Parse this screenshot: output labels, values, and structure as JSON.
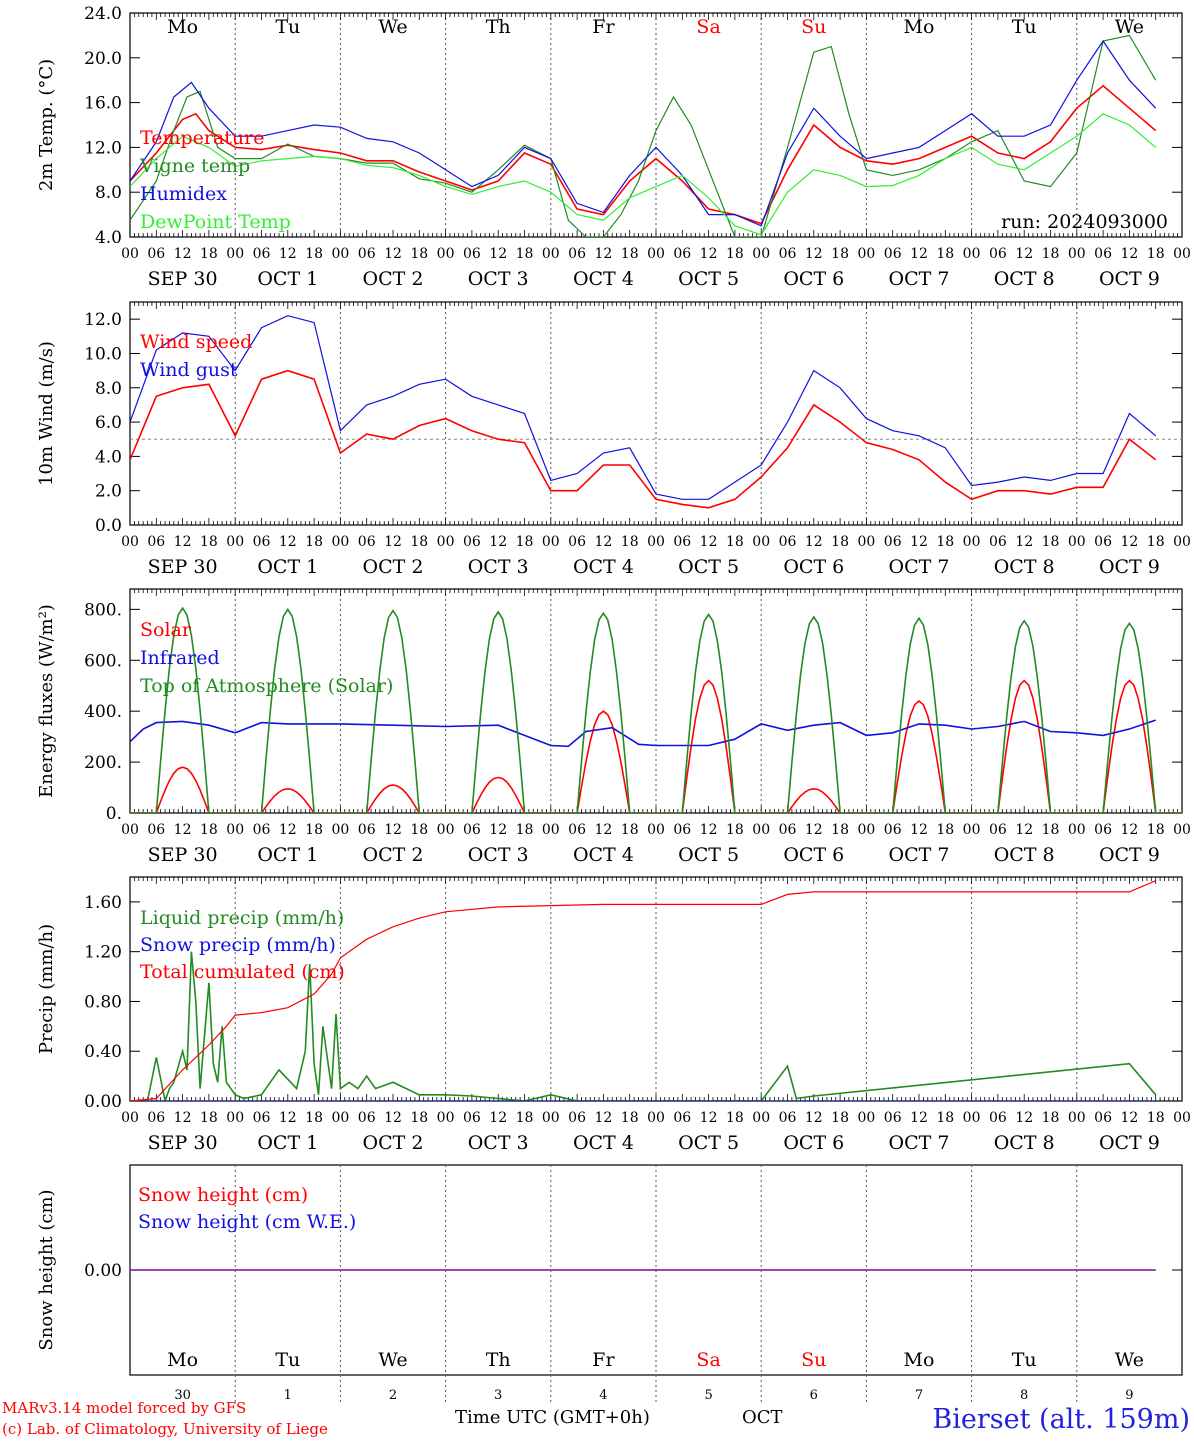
{
  "meta": {
    "run_label": "run: 2024093000",
    "credit_line_1": "MARv3.14 model forced by GFS",
    "credit_line_2": "(c) Lab. of Climatology, University of Liege",
    "time_axis_label": "Time UTC (GMT+0h)",
    "month_label": "OCT",
    "station": "Bierset (alt. 159m)"
  },
  "days": {
    "names": [
      "Mo",
      "Tu",
      "We",
      "Th",
      "Fr",
      "Sa",
      "Su",
      "Mo",
      "Tu",
      "We"
    ],
    "weekend_flags": [
      false,
      false,
      false,
      false,
      false,
      true,
      true,
      false,
      false,
      false
    ],
    "date_labels": [
      "SEP 30",
      "OCT  1",
      "OCT  2",
      "OCT  3",
      "OCT  4",
      "OCT  5",
      "OCT  6",
      "OCT  7",
      "OCT  8",
      "OCT  9"
    ],
    "day_numbers": [
      "30",
      "1",
      "2",
      "3",
      "4",
      "5",
      "6",
      "7",
      "8",
      "9"
    ],
    "hour_labels": [
      "00",
      "06",
      "12",
      "18"
    ],
    "final_hour_label": "00"
  },
  "colors": {
    "red": "#ff0000",
    "green": "#228b22",
    "blue": "#1010e0",
    "light_green": "#33ee33",
    "purple": "#8020a0",
    "grid": "#555555",
    "station": "#2222dd"
  },
  "chart_data": [
    {
      "id": "temp",
      "type": "line",
      "ylabel": "2m Temp. (°C)",
      "ylim": [
        4,
        24
      ],
      "yticks": [
        4,
        8,
        12,
        16,
        20,
        24
      ],
      "ytick_labels": [
        "4.0",
        "8.0",
        "12.0",
        "16.0",
        "20.0",
        "24.0"
      ],
      "show_day_names": true,
      "x_unit": "hours since 2024-09-30 00 UTC",
      "series": [
        {
          "name": "Temperature",
          "color": "#ff0000",
          "x": [
            0,
            6,
            12,
            15,
            18,
            24,
            30,
            36,
            42,
            48,
            54,
            60,
            66,
            72,
            78,
            84,
            90,
            96,
            102,
            108,
            114,
            120,
            126,
            132,
            138,
            144,
            150,
            156,
            162,
            168,
            174,
            180,
            186,
            192,
            198,
            204,
            210,
            216,
            222,
            228,
            234
          ],
          "y": [
            9.0,
            11.5,
            14.5,
            15.0,
            13.5,
            12.0,
            11.8,
            12.2,
            11.8,
            11.5,
            10.8,
            10.8,
            9.8,
            9.0,
            8.2,
            9.0,
            11.5,
            10.5,
            6.5,
            6.0,
            9.0,
            11.0,
            9.0,
            6.5,
            6.0,
            5.2,
            10.0,
            14.0,
            12.0,
            10.8,
            10.5,
            11.0,
            12.0,
            13.0,
            11.5,
            11.0,
            12.5,
            15.5,
            17.5,
            15.5,
            13.5
          ]
        },
        {
          "name": "Vigne temp",
          "color": "#228b22",
          "x": [
            0,
            6,
            10,
            13,
            16,
            20,
            24,
            30,
            36,
            42,
            48,
            54,
            60,
            66,
            72,
            78,
            84,
            90,
            96,
            100,
            104,
            108,
            112,
            116,
            120,
            124,
            128,
            132,
            138,
            144,
            150,
            156,
            160,
            164,
            168,
            174,
            180,
            186,
            192,
            198,
            204,
            210,
            216,
            222,
            228,
            234
          ],
          "y": [
            5.5,
            9.0,
            13.5,
            16.5,
            17.0,
            12.0,
            11.0,
            11.0,
            12.3,
            11.2,
            11.0,
            10.6,
            10.6,
            9.2,
            8.8,
            8.0,
            10.0,
            12.2,
            11.0,
            5.5,
            4.0,
            4.0,
            6.0,
            9.0,
            13.5,
            16.5,
            14.0,
            10.0,
            4.0,
            4.0,
            12.0,
            20.5,
            21.0,
            15.0,
            10.0,
            9.5,
            10.0,
            11.0,
            12.5,
            13.5,
            9.0,
            8.5,
            11.5,
            21.5,
            22.0,
            18.0
          ]
        },
        {
          "name": "Humidex",
          "color": "#1010e0",
          "x": [
            0,
            6,
            10,
            14,
            18,
            24,
            30,
            36,
            42,
            48,
            54,
            60,
            66,
            72,
            78,
            84,
            90,
            96,
            102,
            108,
            114,
            120,
            126,
            132,
            138,
            144,
            150,
            156,
            162,
            168,
            174,
            180,
            186,
            192,
            198,
            204,
            210,
            216,
            222,
            228,
            234
          ],
          "y": [
            9.0,
            12.5,
            16.5,
            17.8,
            15.5,
            13.0,
            13.0,
            13.5,
            14.0,
            13.8,
            12.8,
            12.5,
            11.5,
            10.0,
            8.5,
            9.5,
            12.0,
            11.0,
            7.0,
            6.2,
            9.5,
            12.0,
            9.5,
            6.0,
            6.0,
            5.0,
            11.5,
            15.5,
            13.0,
            11.0,
            11.5,
            12.0,
            13.5,
            15.0,
            13.0,
            13.0,
            14.0,
            18.0,
            21.5,
            18.0,
            15.5
          ]
        },
        {
          "name": "DewPoint Temp",
          "color": "#33ee33",
          "x": [
            0,
            6,
            12,
            18,
            24,
            30,
            36,
            42,
            48,
            54,
            60,
            66,
            72,
            78,
            84,
            90,
            96,
            102,
            108,
            114,
            120,
            126,
            132,
            138,
            144,
            150,
            156,
            162,
            168,
            174,
            180,
            186,
            192,
            198,
            204,
            210,
            216,
            222,
            228,
            234
          ],
          "y": [
            8.5,
            11.0,
            13.0,
            12.0,
            10.3,
            10.8,
            11.0,
            11.2,
            11.0,
            10.4,
            10.2,
            9.5,
            8.5,
            7.8,
            8.5,
            9.0,
            8.0,
            6.0,
            5.5,
            7.5,
            8.5,
            9.5,
            7.5,
            5.0,
            4.2,
            8.0,
            10.0,
            9.5,
            8.5,
            8.6,
            9.5,
            11.0,
            12.0,
            10.5,
            10.0,
            11.5,
            13.0,
            15.0,
            14.0,
            12.0
          ]
        }
      ]
    },
    {
      "id": "wind",
      "type": "line",
      "ylabel": "10m Wind (m/s)",
      "ylim": [
        0,
        13
      ],
      "yticks": [
        0,
        2,
        4,
        6,
        8,
        10,
        12
      ],
      "ytick_labels": [
        "0.0",
        "2.0",
        "4.0",
        "6.0",
        "8.0",
        "10.0",
        "12.0"
      ],
      "reference_line_y": 5,
      "show_day_names": false,
      "x_unit": "hours since 2024-09-30 00 UTC",
      "series": [
        {
          "name": "Wind speed",
          "color": "#ff0000",
          "x": [
            0,
            6,
            12,
            18,
            24,
            30,
            36,
            42,
            48,
            54,
            60,
            66,
            72,
            78,
            84,
            90,
            96,
            102,
            108,
            114,
            120,
            126,
            132,
            138,
            144,
            150,
            156,
            162,
            168,
            174,
            180,
            186,
            192,
            198,
            204,
            210,
            216,
            222,
            228,
            234
          ],
          "y": [
            3.8,
            7.5,
            8.0,
            8.2,
            5.2,
            8.5,
            9.0,
            8.5,
            4.2,
            5.3,
            5.0,
            5.8,
            6.2,
            5.5,
            5.0,
            4.8,
            2.0,
            2.0,
            3.5,
            3.5,
            1.5,
            1.2,
            1.0,
            1.5,
            2.8,
            4.5,
            7.0,
            6.0,
            4.8,
            4.4,
            3.8,
            2.5,
            1.5,
            2.0,
            2.0,
            1.8,
            2.2,
            2.2,
            5.0,
            3.8
          ]
        },
        {
          "name": "Wind gust",
          "color": "#1010e0",
          "x": [
            0,
            6,
            12,
            18,
            24,
            30,
            36,
            42,
            48,
            54,
            60,
            66,
            72,
            78,
            84,
            90,
            96,
            102,
            108,
            114,
            120,
            126,
            132,
            138,
            144,
            150,
            156,
            162,
            168,
            174,
            180,
            186,
            192,
            198,
            204,
            210,
            216,
            222,
            228,
            234
          ],
          "y": [
            6.0,
            10.2,
            11.2,
            11.0,
            9.0,
            11.5,
            12.2,
            11.8,
            5.5,
            7.0,
            7.5,
            8.2,
            8.5,
            7.5,
            7.0,
            6.5,
            2.6,
            3.0,
            4.2,
            4.5,
            1.8,
            1.5,
            1.5,
            2.5,
            3.5,
            6.0,
            9.0,
            8.0,
            6.2,
            5.5,
            5.2,
            4.5,
            2.3,
            2.5,
            2.8,
            2.6,
            3.0,
            3.0,
            6.5,
            5.2
          ]
        }
      ]
    },
    {
      "id": "energy",
      "type": "line",
      "ylabel": "Energy fluxes (W/m²)",
      "ylim": [
        0,
        880
      ],
      "yticks": [
        0,
        200,
        400,
        600,
        800
      ],
      "ytick_labels": [
        "0.",
        "200.",
        "400.",
        "600.",
        "800."
      ],
      "show_day_names": false,
      "x_unit": "hours since 2024-09-30 00 UTC",
      "series": [
        {
          "name": "Solar",
          "color": "#ff0000",
          "day_peaks": [
            180,
            95,
            110,
            140,
            400,
            520,
            95,
            440,
            520,
            520
          ]
        },
        {
          "name": "Infrared",
          "color": "#1010e0",
          "x": [
            0,
            3,
            6,
            12,
            18,
            24,
            30,
            36,
            48,
            60,
            72,
            84,
            96,
            100,
            104,
            110,
            116,
            120,
            132,
            138,
            144,
            150,
            156,
            162,
            168,
            174,
            180,
            186,
            192,
            198,
            204,
            210,
            216,
            222,
            228,
            234
          ],
          "y": [
            280,
            330,
            355,
            360,
            345,
            315,
            355,
            350,
            350,
            345,
            340,
            345,
            265,
            262,
            320,
            335,
            270,
            265,
            265,
            290,
            350,
            325,
            345,
            355,
            305,
            315,
            350,
            345,
            330,
            340,
            360,
            320,
            315,
            305,
            330,
            365
          ]
        },
        {
          "name": "Top of Atmosphere (Solar)",
          "color": "#228b22",
          "day_peaks": [
            805,
            800,
            795,
            790,
            785,
            780,
            770,
            765,
            755,
            745
          ]
        }
      ]
    },
    {
      "id": "precip",
      "type": "line",
      "ylabel": "Precip (mm/h)",
      "ylim": [
        0,
        1.8
      ],
      "yticks": [
        0,
        0.4,
        0.8,
        1.2,
        1.6
      ],
      "ytick_labels": [
        "0.00",
        "0.40",
        "0.80",
        "1.20",
        "1.60"
      ],
      "show_day_names": false,
      "x_unit": "hours since 2024-09-30 00 UTC",
      "series": [
        {
          "name": "Liquid precip (mm/h)",
          "color": "#228b22",
          "x": [
            0,
            4,
            6,
            8,
            9,
            10,
            12,
            13,
            14,
            15,
            16,
            18,
            19,
            20,
            21,
            22,
            24,
            26,
            30,
            34,
            38,
            40,
            41,
            42,
            43,
            44,
            46,
            47,
            48,
            50,
            52,
            54,
            56,
            60,
            66,
            72,
            78,
            84,
            90,
            96,
            102,
            108,
            144,
            150,
            152,
            156,
            228,
            234
          ],
          "y": [
            0,
            0,
            0.35,
            0,
            0.1,
            0.15,
            0.4,
            0.25,
            1.2,
            0.8,
            0.1,
            0.95,
            0.3,
            0.15,
            0.6,
            0.15,
            0.05,
            0.02,
            0.05,
            0.25,
            0.1,
            0.4,
            1.1,
            0.3,
            0.05,
            0.6,
            0.1,
            0.7,
            0.1,
            0.15,
            0.1,
            0.2,
            0.1,
            0.15,
            0.05,
            0.05,
            0.04,
            0.02,
            0,
            0.05,
            0,
            0,
            0,
            0.28,
            0.02,
            0.04,
            0.3,
            0.05
          ]
        },
        {
          "name": "Snow precip (mm/h)",
          "color": "#1010e0",
          "x": [
            0,
            234
          ],
          "y": [
            0,
            0
          ]
        },
        {
          "name": "Total cumulated (cm)",
          "color": "#ff0000",
          "x": [
            0,
            6,
            12,
            18,
            22,
            24,
            30,
            36,
            42,
            46,
            48,
            54,
            60,
            66,
            72,
            84,
            96,
            108,
            120,
            144,
            150,
            156,
            180,
            204,
            228,
            234
          ],
          "y": [
            0,
            0.02,
            0.25,
            0.45,
            0.6,
            0.69,
            0.71,
            0.75,
            0.86,
            1.02,
            1.15,
            1.3,
            1.4,
            1.47,
            1.52,
            1.56,
            1.57,
            1.58,
            1.58,
            1.58,
            1.66,
            1.68,
            1.68,
            1.68,
            1.68,
            1.77
          ]
        }
      ]
    },
    {
      "id": "snow",
      "type": "line",
      "ylabel": "Snow height (cm)",
      "ylim": [
        -1,
        1
      ],
      "yticks": [
        0
      ],
      "ytick_labels": [
        "0.00"
      ],
      "show_day_names": true,
      "x_unit": "hours since 2024-09-30 00 UTC",
      "series": [
        {
          "name": "Snow height (cm)",
          "color": "#ff0000",
          "x": [
            0,
            234
          ],
          "y": [
            0,
            0
          ]
        },
        {
          "name": "Snow height (cm W.E.)",
          "color": "#1010e0",
          "x": [
            0,
            234
          ],
          "y": [
            0,
            0
          ]
        }
      ]
    }
  ]
}
